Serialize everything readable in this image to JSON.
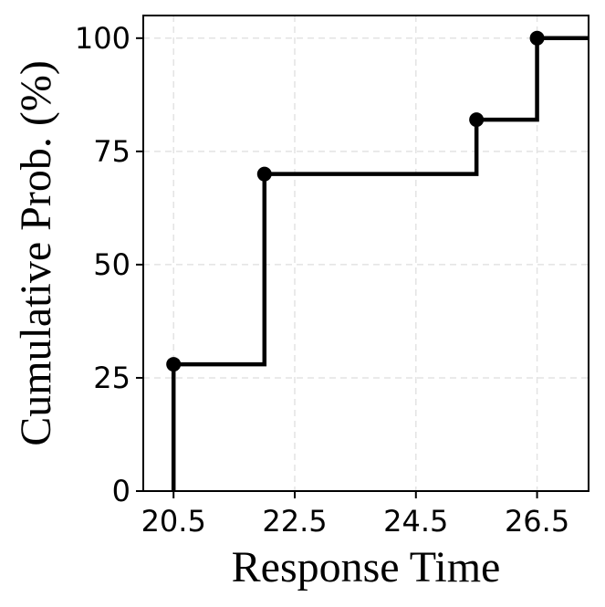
{
  "chart_data": {
    "type": "line",
    "subtype": "step",
    "title": "",
    "xlabel": "Response Time",
    "ylabel": "Cumulative Prob. (%)",
    "x": [
      20.5,
      22.0,
      25.5,
      26.5
    ],
    "y": [
      28,
      70,
      82,
      100
    ],
    "xlim": [
      20.0,
      27.35
    ],
    "ylim": [
      0,
      105
    ],
    "x_ticks": [
      20.5,
      22.5,
      24.5,
      26.5
    ],
    "x_tick_labels": [
      "20.5",
      "22.5",
      "24.5",
      "26.5"
    ],
    "y_ticks": [
      0,
      25,
      50,
      75,
      100
    ],
    "y_tick_labels": [
      "0",
      "25",
      "50",
      "75",
      "100"
    ],
    "grid": true,
    "legend": "none",
    "line_color": "#000000",
    "grid_color": "#e3e3e3"
  }
}
